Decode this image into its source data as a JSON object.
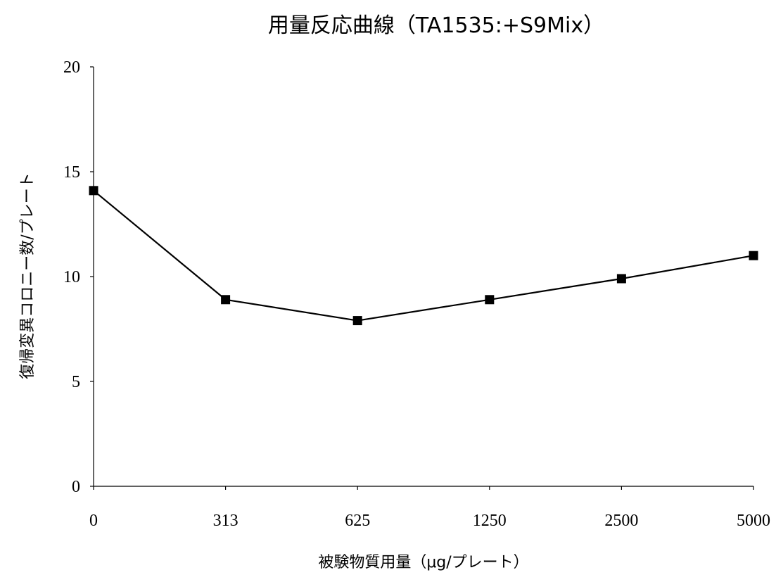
{
  "chart_data": {
    "type": "line",
    "title": "用量反応曲線（TA1535:+S9Mix）",
    "xlabel": "被験物質用量（μg/プレート）",
    "ylabel": "復帰変異コロニー数/プレート",
    "categories": [
      "0",
      "313",
      "625",
      "1250",
      "2500",
      "5000"
    ],
    "series": [
      {
        "values": [
          14.1,
          8.9,
          7.9,
          8.9,
          9.9,
          11.0
        ]
      }
    ],
    "ylim": [
      0,
      20
    ],
    "yticks": [
      0,
      5,
      10,
      15,
      20
    ],
    "grid": false,
    "legend": false
  }
}
